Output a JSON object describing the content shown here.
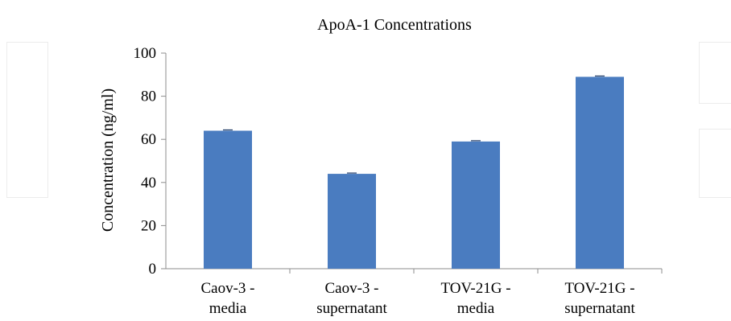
{
  "chart_data": {
    "type": "bar",
    "title": "ApoA-1  Concentrations",
    "xlabel": "",
    "ylabel": "Concentration  (ng/ml)",
    "ylim": [
      0,
      100
    ],
    "yticks": [
      0,
      20,
      40,
      60,
      80,
      100
    ],
    "grid": false,
    "legend": "none",
    "categories": [
      [
        "Caov-3 -",
        "media"
      ],
      [
        "Caov-3 -",
        "supernatant"
      ],
      [
        "TOV-21G -",
        "media"
      ],
      [
        "TOV-21G -",
        "supernatant"
      ]
    ],
    "values": [
      64,
      44,
      59,
      89
    ],
    "bar_color": "#4a7cc0",
    "error_color": "#1f3a66"
  }
}
